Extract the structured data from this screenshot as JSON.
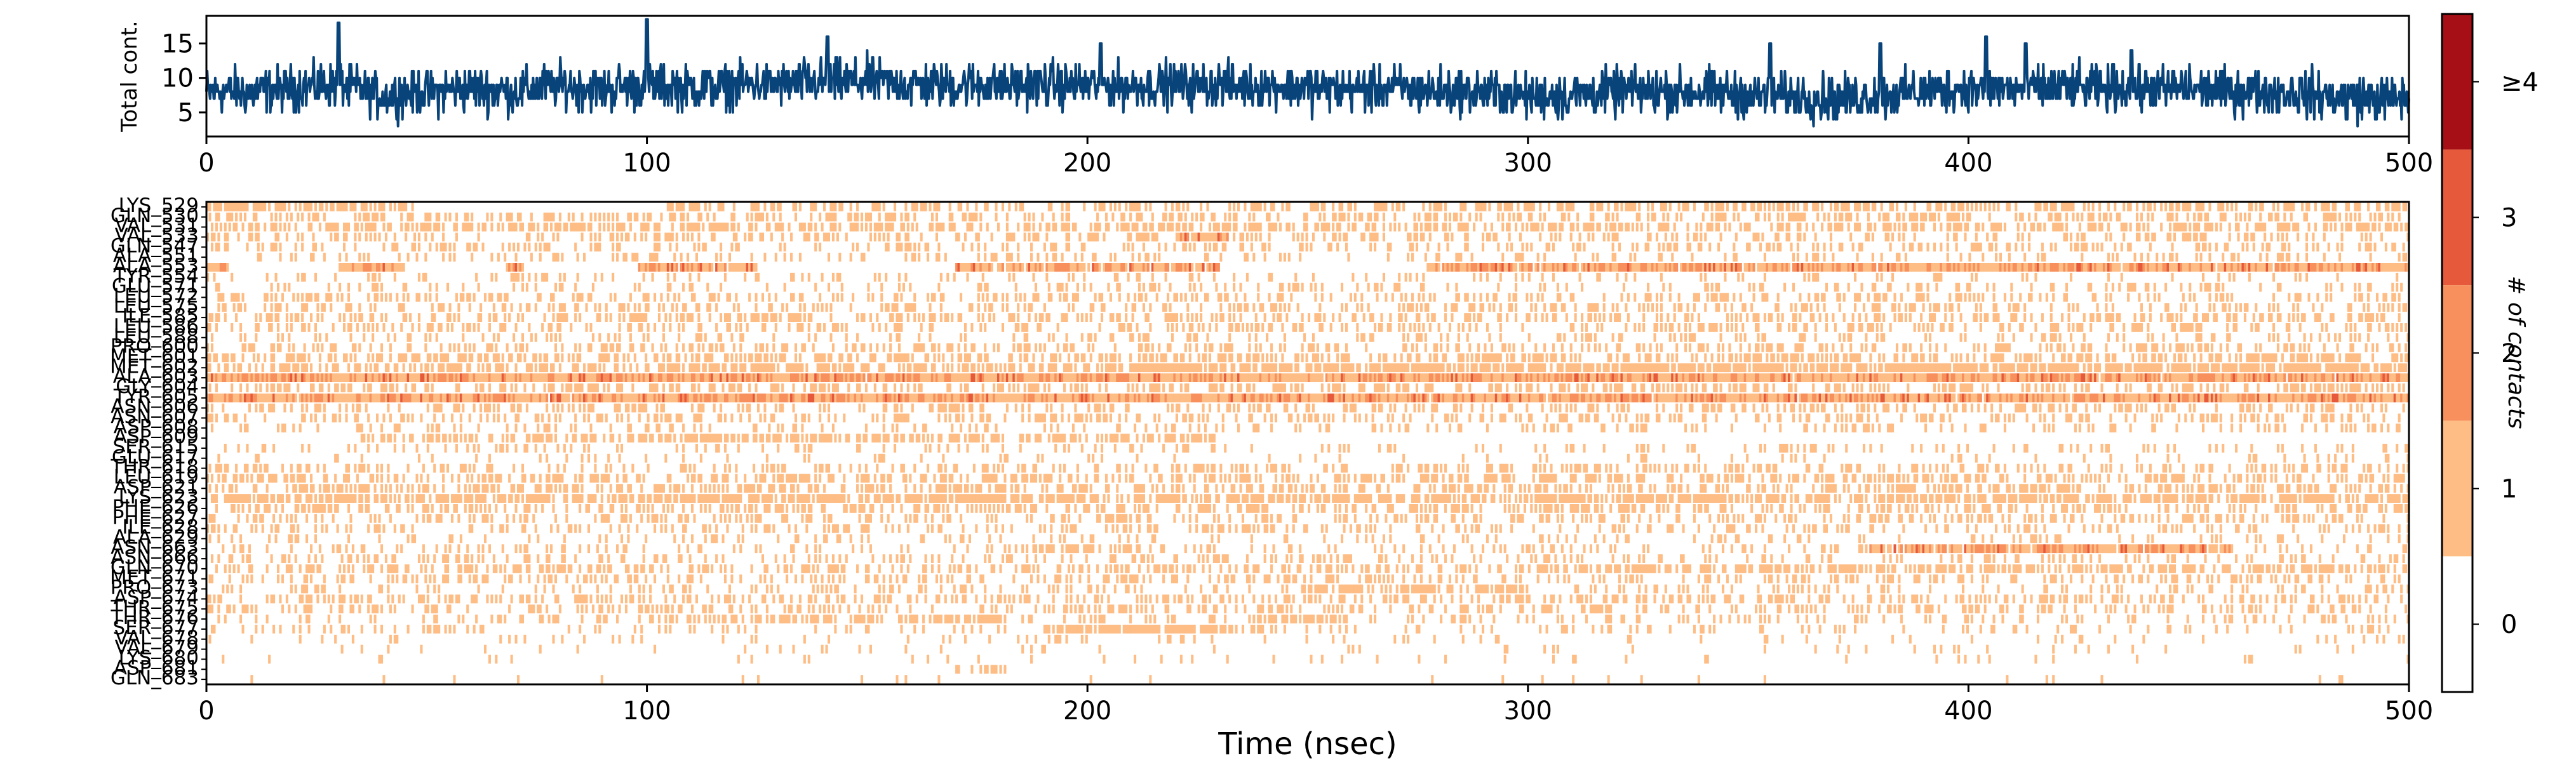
{
  "chart_data": [
    {
      "type": "line",
      "ylabel": "Total cont.",
      "xlabel": "",
      "xlim": [
        0,
        500
      ],
      "ylim": [
        1.5,
        19
      ],
      "x_ticks": [
        0,
        100,
        200,
        300,
        400,
        500
      ],
      "y_ticks": [
        5,
        10,
        15
      ],
      "grid": false,
      "series": [
        {
          "color": "#08437a",
          "summary": "Noisy trace sampled every ~0.1 ns; values mostly between 5 and 11 with spikes near 18 at t≈30, t≈100 and t≈400 ns; minimum about 2",
          "anchors_x": [
            0,
            10,
            20,
            30,
            40,
            50,
            60,
            70,
            80,
            90,
            100,
            110,
            120,
            130,
            140,
            150,
            160,
            170,
            180,
            190,
            200,
            210,
            220,
            230,
            240,
            250,
            260,
            270,
            280,
            290,
            300,
            310,
            320,
            330,
            340,
            350,
            360,
            370,
            380,
            390,
            400,
            410,
            420,
            430,
            440,
            450,
            460,
            470,
            480,
            490,
            500
          ],
          "anchors_y": [
            8,
            8,
            8.5,
            9,
            7.5,
            8,
            8.5,
            8,
            9,
            8.5,
            9,
            8.5,
            9,
            9,
            9.5,
            9.5,
            9,
            9,
            9,
            9,
            9,
            9,
            9,
            9,
            9,
            8.5,
            8.5,
            8.5,
            8,
            8,
            7.5,
            7.5,
            8,
            8,
            8,
            7.5,
            7.5,
            7,
            7.5,
            8,
            8.5,
            8.5,
            8.5,
            8.5,
            8.5,
            8.5,
            8,
            8,
            7.5,
            7,
            7
          ],
          "spikes": [
            [
              30,
              17.5
            ],
            [
              100,
              18.5
            ],
            [
              141,
              16
            ],
            [
              203,
              14.5
            ],
            [
              355,
              14.5
            ],
            [
              380,
              14.5
            ],
            [
              404,
              16
            ],
            [
              413,
              15
            ],
            [
              437,
              14
            ]
          ]
        }
      ]
    },
    {
      "type": "heatmap",
      "xlabel": "Time (nsec)",
      "ylabel": "",
      "xlim": [
        0,
        500
      ],
      "x_ticks": [
        0,
        100,
        200,
        300,
        400,
        500
      ],
      "rows": [
        "LYS_529",
        "GLN_530",
        "VAL_531",
        "VAL_533",
        "GLN_547",
        "ALA_551",
        "ALA_553",
        "TYR_554",
        "GLU_571",
        "LEU_572",
        "LEU_575",
        "ILE_585",
        "LEU_586",
        "LEU_588",
        "PRO_600",
        "MET_601",
        "MET_602",
        "ALA_603",
        "GLY_604",
        "TYR_605",
        "ASN_606",
        "ASN_607",
        "ASP_608",
        "ASP_609",
        "SER_615",
        "GLU_617",
        "THR_618",
        "LEU_619",
        "ASP_621",
        "LYS_623",
        "PHE_626",
        "PHE_627",
        "ILE_628",
        "ALA_629",
        "ASN_663",
        "ASN_666",
        "GLN_670",
        "MET_671",
        "PRO_673",
        "ASP_674",
        "THR_675",
        "THR_676",
        "SER_677",
        "VAL_678",
        "VAL_679",
        "LYS_680",
        "ASP_681",
        "GLN_683"
      ],
      "rows_visible_note": "Y-axis labels are printed overlapping; legible ones include LYS_529, GLN_530, VAL_531, VAL_533, GLN_547, ALA_551, ALA_553, GLU_571, ILE_585, LEU_586, LEU_588, MET_601, MET_602, GLY_604, ASN_606, ASP_608, SER_615, LEU_619, LYS_623, PHE_626, ILE_628, ASN_663, ASN_666, MET_671, PRO_673, ASP_674, THR_675, THR_676, SER_677, VAL_678, VAL_679, LYS_680, ASP_681, GLN_683",
      "colorscale": {
        "label": "# of contacts",
        "levels": [
          "0",
          "1",
          "2",
          "3",
          "≥4"
        ],
        "colors": [
          "#ffffff",
          "#fdbd85",
          "#f7905c",
          "#e65a3b",
          "#a50f15"
        ]
      },
      "density_by_row": [
        [
          [
            0,
            47,
            0.7
          ],
          [
            104,
            290,
            0.4
          ],
          [
            290,
            500,
            0.5
          ]
        ],
        [
          [
            0,
            500,
            0.35
          ]
        ],
        [
          [
            0,
            500,
            0.5
          ],
          [
            35,
            75,
            0.6
          ]
        ],
        [
          [
            0,
            500,
            0.3
          ],
          [
            220,
            232,
            0.9
          ]
        ],
        [
          [
            0,
            500,
            0.25
          ]
        ],
        [
          [
            0,
            500,
            0.2
          ]
        ],
        [
          [
            0,
            5,
            0.9
          ],
          [
            30,
            45,
            0.9
          ],
          [
            68,
            72,
            0.9
          ],
          [
            98,
            125,
            0.9
          ],
          [
            170,
            230,
            0.9
          ],
          [
            277,
            500,
            0.97
          ]
        ],
        [
          [
            0,
            500,
            0.15
          ]
        ],
        [
          [
            0,
            500,
            0.2
          ]
        ],
        [
          [
            0,
            500,
            0.3
          ]
        ],
        [
          [
            0,
            500,
            0.3
          ]
        ],
        [
          [
            0,
            500,
            0.35
          ]
        ],
        [
          [
            0,
            500,
            0.3
          ]
        ],
        [
          [
            0,
            500,
            0.2
          ]
        ],
        [
          [
            0,
            500,
            0.3
          ]
        ],
        [
          [
            0,
            500,
            0.45
          ]
        ],
        [
          [
            0,
            500,
            0.55
          ],
          [
            210,
            500,
            0.8
          ]
        ],
        [
          [
            0,
            500,
            0.99
          ]
        ],
        [
          [
            0,
            500,
            0.4
          ]
        ],
        [
          [
            0,
            500,
            0.99
          ]
        ],
        [
          [
            0,
            500,
            0.3
          ],
          [
            95,
            100,
            0.8
          ]
        ],
        [
          [
            0,
            500,
            0.3
          ]
        ],
        [
          [
            0,
            500,
            0.2
          ]
        ],
        [
          [
            35,
            104,
            0.5
          ],
          [
            104,
            230,
            0.55
          ]
        ],
        [
          [
            0,
            500,
            0.15
          ]
        ],
        [
          [
            0,
            500,
            0.1
          ]
        ],
        [
          [
            0,
            500,
            0.3
          ]
        ],
        [
          [
            0,
            500,
            0.45
          ]
        ],
        [
          [
            0,
            500,
            0.4
          ]
        ],
        [
          [
            0,
            500,
            0.7
          ]
        ],
        [
          [
            0,
            500,
            0.4
          ]
        ],
        [
          [
            0,
            500,
            0.3
          ]
        ],
        [
          [
            0,
            500,
            0.25
          ]
        ],
        [
          [
            0,
            500,
            0.15
          ]
        ],
        [
          [
            375,
            460,
            0.9
          ],
          [
            185,
            210,
            0.6
          ],
          [
            0,
            500,
            0.15
          ]
        ],
        [
          [
            0,
            500,
            0.25
          ]
        ],
        [
          [
            0,
            500,
            0.4
          ],
          [
            320,
            500,
            0.55
          ]
        ],
        [
          [
            0,
            500,
            0.3
          ]
        ],
        [
          [
            250,
            300,
            0.6
          ],
          [
            0,
            500,
            0.2
          ]
        ],
        [
          [
            0,
            500,
            0.35
          ]
        ],
        [
          [
            0,
            500,
            0.3
          ],
          [
            40,
            32,
            0.7
          ]
        ],
        [
          [
            100,
            180,
            0.6
          ],
          [
            240,
            260,
            0.7
          ],
          [
            0,
            500,
            0.2
          ]
        ],
        [
          [
            190,
            240,
            0.8
          ],
          [
            0,
            500,
            0.15
          ]
        ],
        [
          [
            0,
            500,
            0.1
          ]
        ],
        [
          [
            0,
            500,
            0.05
          ]
        ],
        [
          [
            0,
            500,
            0.05
          ]
        ],
        [
          [
            170,
            182,
            0.5
          ]
        ],
        [
          [
            0,
            500,
            0.03
          ]
        ]
      ]
    }
  ]
}
